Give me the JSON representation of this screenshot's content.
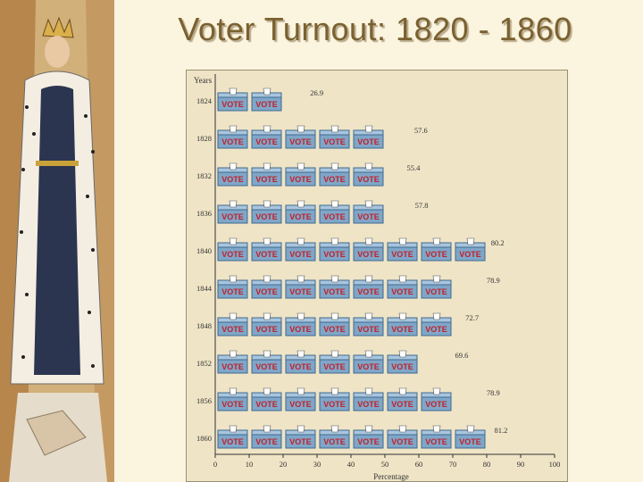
{
  "slide": {
    "title": "Voter Turnout:  1820 - 1860"
  },
  "icons": {
    "ballot_box": "vote-ballot-box-icon",
    "ballot_label": "VOTE"
  },
  "colors": {
    "box": "#7fa6c8",
    "box_dark": "#3f6a90",
    "label_red": "#c2202a",
    "panel": "#efe4c6"
  },
  "chart_data": {
    "type": "bar",
    "orientation": "horizontal",
    "style": "pictograph",
    "unit_per_icon": 10,
    "ylabel": "Years",
    "xlabel": "Percentage",
    "xlim": [
      0,
      100
    ],
    "xticks": [
      0,
      10,
      20,
      30,
      40,
      50,
      60,
      70,
      80,
      90,
      100
    ],
    "categories": [
      "1824",
      "1828",
      "1832",
      "1836",
      "1840",
      "1844",
      "1848",
      "1852",
      "1856",
      "1860"
    ],
    "values": [
      26.9,
      57.6,
      55.4,
      57.8,
      80.2,
      78.9,
      72.7,
      69.6,
      78.9,
      81.2
    ],
    "value_labels": [
      "26.9",
      "57.6",
      "55.4",
      "57.8",
      "80.2",
      "78.9",
      "72.7",
      "69.6",
      "78.9",
      "81.2"
    ],
    "grid": false
  }
}
